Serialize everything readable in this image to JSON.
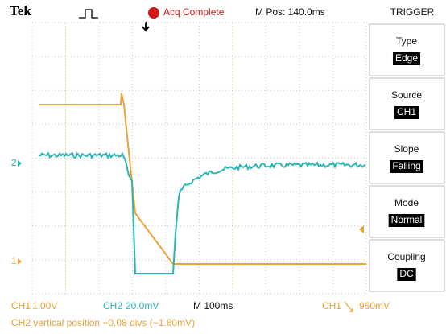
{
  "header": {
    "brand": "Tek",
    "status": "Acq Complete",
    "position": "M Pos: 140.0ms",
    "menu_title": "TRIGGER"
  },
  "menu": [
    {
      "label": "Type",
      "value": "Edge"
    },
    {
      "label": "Source",
      "value": "CH1"
    },
    {
      "label": "Slope",
      "value": "Falling"
    },
    {
      "label": "Mode",
      "value": "Normal"
    },
    {
      "label": "Coupling",
      "value": "DC"
    }
  ],
  "markers": {
    "ch2": "2",
    "ch1": "1"
  },
  "footer": {
    "ch1_label": "CH1",
    "ch1_scale": "1.00V",
    "ch2_label": "CH2",
    "ch2_scale": "20.0mV",
    "timebase": "M 100ms",
    "trigger_source": "CH1",
    "trigger_level": "960mV",
    "message": "CH2 vertical position −0.08 divs (−1.60mV)"
  }
}
